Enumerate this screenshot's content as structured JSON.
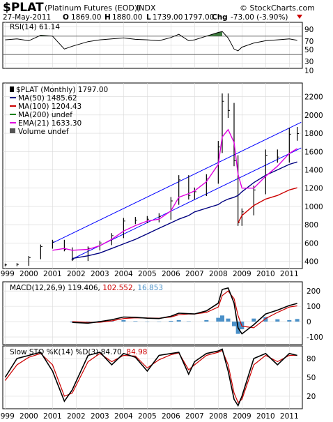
{
  "header": {
    "symbol": "$PLAT",
    "name": "(Platinum Futures (EOD))",
    "exchange": "INDX",
    "date": "27-May-2011",
    "open_label": "O",
    "open": "1869.00",
    "high_label": "H",
    "high": "1880.00",
    "low_label": "L",
    "low": "1739.00",
    "close": "1797.00",
    "chg_label": "Chg",
    "chg": "-73.00 (-3.90%)",
    "watermark": "© StockCharts.com"
  },
  "rsi_panel": {
    "label": "RSI(14) 61.14",
    "ticks": [
      "90",
      "70",
      "50",
      "30",
      "10"
    ]
  },
  "price_panel": {
    "title": "$PLAT (Monthly) 1797.00",
    "legend": [
      {
        "text": "MA(50) 1485.62",
        "color": "#000080"
      },
      {
        "text": "MA(100) 1204.43",
        "color": "#cc0000"
      },
      {
        "text": "MA(200) undef",
        "color": "#008000"
      },
      {
        "text": "EMA(21) 1633.30",
        "color": "#e000e0"
      },
      {
        "text": "Volume undef",
        "color": "#000000"
      }
    ],
    "ticks": [
      "2200",
      "2000",
      "1800",
      "1600",
      "1400",
      "1200",
      "1000",
      "800",
      "600",
      "400"
    ]
  },
  "year_labels": [
    "1999",
    "2000",
    "2001",
    "2002",
    "2003",
    "2004",
    "2005",
    "2006",
    "2007",
    "2008",
    "2009",
    "2010",
    "2011"
  ],
  "macd_panel": {
    "label": "MACD(12,26,9)",
    "macd": "119.406",
    "signal": "102.552",
    "hist": "16.853",
    "ticks": [
      "200",
      "100",
      "0",
      "-100"
    ]
  },
  "sto_panel": {
    "label": "Slow STO %K(14) %D(3)",
    "k": "84.70",
    "d": "84.98",
    "ticks": [
      "80",
      "50",
      "20"
    ]
  },
  "colors": {
    "rsi_fill": "#3d7a3d",
    "channel": "#0000ff",
    "ma50": "#000080",
    "ma100": "#cc0000",
    "ema21": "#e000e0",
    "macd_line": "#000000",
    "signal_line": "#cc0000",
    "histogram": "#4a90c8",
    "chg_negative": "#cc0000"
  },
  "chart_data": {
    "type": "line",
    "timeframe": "monthly",
    "x": [
      "1999-01",
      "1999-07",
      "2000-01",
      "2000-07",
      "2001-01",
      "2001-07",
      "2001-11",
      "2002-07",
      "2003-01",
      "2003-07",
      "2004-01",
      "2004-07",
      "2005-01",
      "2005-07",
      "2006-01",
      "2006-05",
      "2006-10",
      "2007-01",
      "2007-07",
      "2008-01",
      "2008-03",
      "2008-06",
      "2008-09",
      "2008-11",
      "2009-01",
      "2009-07",
      "2010-01",
      "2010-07",
      "2011-01",
      "2011-05"
    ],
    "series": [
      {
        "name": "$PLAT",
        "values": [
          360,
          365,
          440,
          560,
          610,
          530,
          420,
          540,
          600,
          680,
          840,
          850,
          860,
          890,
          1060,
          1290,
          1120,
          1160,
          1300,
          1650,
          2150,
          2050,
          1500,
          820,
          940,
          1180,
          1560,
          1540,
          1790,
          1797
        ]
      },
      {
        "name": "MA(50)",
        "values": [
          null,
          null,
          null,
          null,
          null,
          null,
          430,
          460,
          490,
          540,
          590,
          640,
          700,
          760,
          820,
          860,
          900,
          940,
          980,
          1020,
          1050,
          1080,
          1100,
          1120,
          1160,
          1260,
          1340,
          1400,
          1460,
          1486
        ]
      },
      {
        "name": "MA(100)",
        "values": [
          null,
          null,
          null,
          null,
          null,
          null,
          null,
          null,
          null,
          null,
          null,
          null,
          null,
          null,
          null,
          null,
          null,
          null,
          null,
          null,
          null,
          null,
          null,
          820,
          900,
          1010,
          1080,
          1120,
          1180,
          1204
        ]
      },
      {
        "name": "EMA(21)",
        "values": [
          null,
          null,
          null,
          null,
          520,
          540,
          520,
          530,
          570,
          640,
          730,
          790,
          840,
          860,
          950,
          1100,
          1140,
          1170,
          1270,
          1460,
          1760,
          1840,
          1700,
          1350,
          1200,
          1200,
          1330,
          1440,
          1580,
          1633
        ]
      }
    ],
    "rsi_values": [
      62,
      64,
      60,
      72,
      70,
      42,
      48,
      58,
      62,
      64,
      66,
      63,
      62,
      60,
      67,
      74,
      60,
      62,
      70,
      78,
      80,
      66,
      42,
      38,
      46,
      55,
      60,
      62,
      64,
      61
    ],
    "macd_values": [
      null,
      null,
      null,
      null,
      null,
      null,
      -5,
      -10,
      0,
      12,
      30,
      28,
      22,
      20,
      35,
      55,
      52,
      50,
      70,
      120,
      210,
      220,
      120,
      -40,
      -80,
      -20,
      50,
      75,
      105,
      119
    ],
    "signal_values": [
      null,
      null,
      null,
      null,
      null,
      null,
      0,
      -5,
      -4,
      5,
      20,
      25,
      24,
      22,
      30,
      45,
      50,
      50,
      60,
      95,
      170,
      200,
      150,
      40,
      -30,
      -40,
      20,
      60,
      95,
      103
    ],
    "histogram_values": [
      null,
      null,
      null,
      null,
      null,
      null,
      -5,
      -5,
      4,
      7,
      10,
      3,
      -2,
      -2,
      5,
      10,
      2,
      0,
      10,
      25,
      40,
      20,
      -30,
      -80,
      -50,
      20,
      30,
      15,
      10,
      17
    ],
    "k_values": [
      50,
      80,
      85,
      90,
      60,
      12,
      30,
      85,
      90,
      70,
      88,
      82,
      60,
      85,
      88,
      90,
      55,
      75,
      88,
      92,
      95,
      60,
      15,
      5,
      20,
      80,
      88,
      70,
      88,
      85
    ],
    "d_values": [
      45,
      70,
      82,
      88,
      70,
      20,
      25,
      75,
      88,
      75,
      85,
      84,
      65,
      78,
      86,
      89,
      62,
      70,
      85,
      90,
      93,
      70,
      25,
      10,
      15,
      70,
      85,
      75,
      85,
      85
    ],
    "price_ylim": [
      320,
      2350
    ],
    "rsi_ylim": [
      0,
      100
    ],
    "macd_ylim": [
      -150,
      260
    ],
    "sto_ylim": [
      0,
      100
    ],
    "grid": true
  }
}
